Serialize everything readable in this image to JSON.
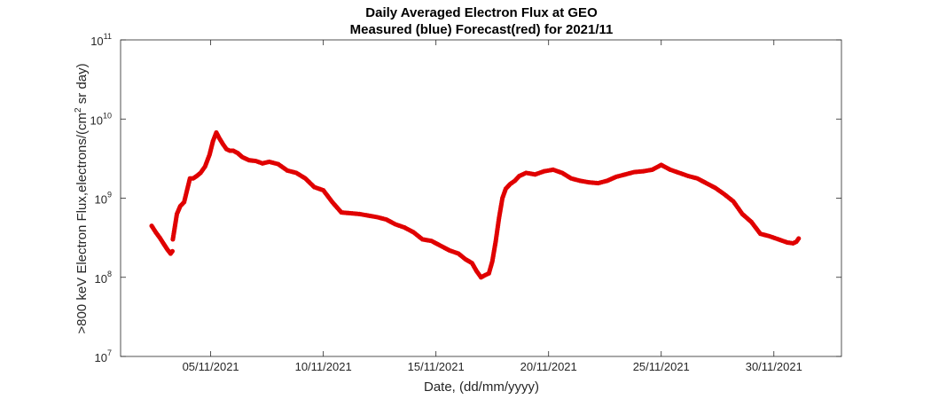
{
  "chart_data": {
    "type": "scatter",
    "title": "Daily Averaged Electron Flux at GEO",
    "subtitle": "Measured (blue) Forecast(red) for 2021/11",
    "xlabel": "Date, (dd/mm/yyyy)",
    "ylabel_main": ">800 keV Electron Flux,electrons/(cm",
    "ylabel_sup": "2",
    "ylabel_tail": " sr day)",
    "xlim": [
      0,
      32
    ],
    "yscale": "log",
    "ylim_log10": [
      7,
      11
    ],
    "xticks": [
      {
        "value": 4,
        "label": "05/11/2021"
      },
      {
        "value": 9,
        "label": "10/11/2021"
      },
      {
        "value": 14,
        "label": "15/11/2021"
      },
      {
        "value": 19,
        "label": "20/11/2021"
      },
      {
        "value": 24,
        "label": "25/11/2021"
      },
      {
        "value": 29,
        "label": "30/11/2021"
      }
    ],
    "yticks": [
      {
        "value": 7,
        "base": "10",
        "exp": "7"
      },
      {
        "value": 8,
        "base": "10",
        "exp": "8"
      },
      {
        "value": 9,
        "base": "10",
        "exp": "9"
      },
      {
        "value": 10,
        "base": "10",
        "exp": "10"
      },
      {
        "value": 11,
        "base": "10",
        "exp": "11"
      }
    ],
    "marker_color": "#e00000",
    "axis_color": "#262626",
    "grid": false,
    "series": [
      {
        "segments": [
          {
            "x": [
              1.38,
              1.56,
              1.74,
              1.92,
              2.08,
              2.22,
              2.3
            ],
            "y": [
              8.65,
              8.57,
              8.5,
              8.42,
              8.35,
              8.3,
              8.33
            ]
          },
          {
            "x": [
              2.32,
              2.36,
              2.5,
              2.65,
              2.82,
              2.95,
              3.08,
              3.22,
              3.38,
              3.55,
              3.75,
              3.95,
              4.1,
              4.25,
              4.4,
              4.55,
              4.7,
              4.85,
              5.0,
              5.2,
              5.4,
              5.7,
              6.0,
              6.3,
              6.6,
              7.0,
              7.4,
              7.8,
              8.2,
              8.6,
              9.0,
              9.4,
              9.8,
              10.2,
              10.6,
              11.0,
              11.4,
              11.8,
              12.2,
              12.6,
              13.0,
              13.4,
              13.8,
              14.2,
              14.6,
              15.0,
              15.3,
              15.6,
              15.8,
              16.0,
              16.2,
              16.35,
              16.5,
              16.65,
              16.8,
              16.95,
              17.1,
              17.3,
              17.5,
              17.7,
              18.0,
              18.4,
              18.8,
              19.2,
              19.6,
              20.0,
              20.4,
              20.8,
              21.2,
              21.6,
              22.0,
              22.4,
              22.8,
              23.2,
              23.6,
              24.0,
              24.4,
              24.8,
              25.2,
              25.6,
              26.0,
              26.4,
              26.8,
              27.2,
              27.6,
              28.0,
              28.4,
              28.8,
              29.2,
              29.6,
              29.85,
              30.0,
              30.1
            ],
            "y": [
              8.48,
              8.55,
              8.8,
              8.9,
              8.95,
              9.1,
              9.25,
              9.25,
              9.28,
              9.32,
              9.4,
              9.55,
              9.72,
              9.83,
              9.75,
              9.68,
              9.62,
              9.6,
              9.6,
              9.57,
              9.52,
              9.48,
              9.47,
              9.44,
              9.46,
              9.43,
              9.35,
              9.32,
              9.25,
              9.14,
              9.1,
              8.95,
              8.82,
              8.81,
              8.8,
              8.78,
              8.76,
              8.73,
              8.67,
              8.63,
              8.57,
              8.48,
              8.46,
              8.4,
              8.34,
              8.3,
              8.23,
              8.18,
              8.08,
              8.0,
              8.03,
              8.05,
              8.2,
              8.45,
              8.75,
              9.0,
              9.12,
              9.18,
              9.22,
              9.28,
              9.32,
              9.3,
              9.34,
              9.36,
              9.32,
              9.25,
              9.22,
              9.2,
              9.19,
              9.22,
              9.27,
              9.3,
              9.33,
              9.34,
              9.36,
              9.42,
              9.36,
              9.32,
              9.28,
              9.25,
              9.19,
              9.13,
              9.05,
              8.96,
              8.8,
              8.7,
              8.55,
              8.52,
              8.48,
              8.44,
              8.43,
              8.45,
              8.49
            ]
          }
        ]
      }
    ]
  }
}
